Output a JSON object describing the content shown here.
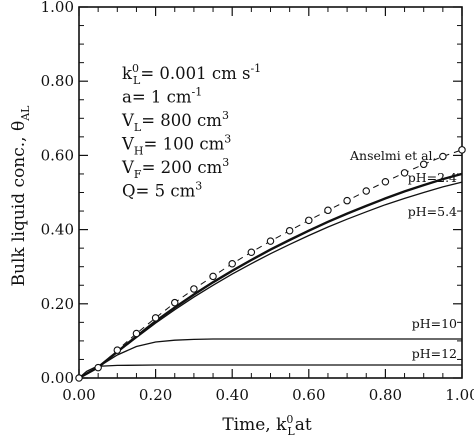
{
  "chart_data": {
    "type": "line",
    "xlabel": "Time, k⁰ₗat",
    "xlabel_parts": {
      "main": "Time, k",
      "sup": "0",
      "sub": "L",
      "tail": "at"
    },
    "ylabel": "Bulk liquid conc., θAL",
    "ylabel_parts": {
      "main": "Bulk liquid conc., θ",
      "sub": "AL"
    },
    "xlim": [
      0.0,
      1.0
    ],
    "ylim": [
      0.0,
      1.0
    ],
    "xticks": [
      "0.00",
      "0.20",
      "0.40",
      "0.60",
      "0.80",
      "1.00"
    ],
    "yticks": [
      "0.00",
      "0.20",
      "0.40",
      "0.60",
      "0.80",
      "1.00"
    ],
    "grid": false,
    "parameters": [
      {
        "main": "k",
        "sup": "0",
        "sub": "L",
        "rest": "= 0.001 cm s",
        "sup2": "-1"
      },
      {
        "main": "a= 1 cm",
        "sup2": "-1"
      },
      {
        "main": "V",
        "sub": "L",
        "rest": "= 800 cm",
        "sup2": "3"
      },
      {
        "main": "V",
        "sub": "H",
        "rest": "= 100 cm",
        "sup2": "3"
      },
      {
        "main": "V",
        "sub": "F",
        "rest": "= 200 cm",
        "sup2": "3"
      },
      {
        "main": "Q= 5 cm",
        "sup2": "3"
      }
    ],
    "series": [
      {
        "name": "Anselmi et al.",
        "style": "dashed-circles",
        "x": [
          0.0,
          0.05,
          0.1,
          0.15,
          0.2,
          0.25,
          0.3,
          0.35,
          0.4,
          0.45,
          0.5,
          0.55,
          0.6,
          0.65,
          0.7,
          0.75,
          0.8,
          0.85,
          0.9,
          0.95,
          1.0
        ],
        "y": [
          0.0,
          0.028,
          0.075,
          0.12,
          0.162,
          0.203,
          0.24,
          0.274,
          0.308,
          0.339,
          0.369,
          0.397,
          0.425,
          0.452,
          0.478,
          0.504,
          0.529,
          0.553,
          0.576,
          0.597,
          0.615
        ]
      },
      {
        "name": "pH=2.4",
        "style": "bold",
        "x": [
          0.0,
          0.05,
          0.1,
          0.15,
          0.2,
          0.25,
          0.3,
          0.35,
          0.4,
          0.45,
          0.5,
          0.55,
          0.6,
          0.65,
          0.7,
          0.75,
          0.8,
          0.85,
          0.9,
          0.95,
          1.0
        ],
        "y": [
          0.0,
          0.029,
          0.071,
          0.112,
          0.153,
          0.19,
          0.225,
          0.258,
          0.289,
          0.318,
          0.346,
          0.372,
          0.397,
          0.421,
          0.443,
          0.464,
          0.484,
          0.503,
          0.52,
          0.536,
          0.55
        ]
      },
      {
        "name": "pH=5.4",
        "style": "thin",
        "x": [
          0.0,
          0.05,
          0.1,
          0.15,
          0.2,
          0.25,
          0.3,
          0.35,
          0.4,
          0.45,
          0.5,
          0.55,
          0.6,
          0.65,
          0.7,
          0.75,
          0.8,
          0.85,
          0.9,
          0.95,
          1.0
        ],
        "y": [
          0.0,
          0.028,
          0.069,
          0.109,
          0.148,
          0.184,
          0.218,
          0.25,
          0.28,
          0.308,
          0.335,
          0.36,
          0.384,
          0.407,
          0.428,
          0.448,
          0.467,
          0.484,
          0.5,
          0.515,
          0.528
        ]
      },
      {
        "name": "pH=10",
        "style": "thin",
        "x": [
          0.0,
          0.05,
          0.1,
          0.15,
          0.2,
          0.25,
          0.3,
          0.35,
          0.4,
          0.5,
          0.6,
          0.7,
          0.8,
          0.9,
          1.0
        ],
        "y": [
          0.0,
          0.03,
          0.062,
          0.085,
          0.097,
          0.102,
          0.104,
          0.105,
          0.105,
          0.105,
          0.105,
          0.105,
          0.105,
          0.105,
          0.105
        ]
      },
      {
        "name": "pH=12",
        "style": "thin",
        "x": [
          0.0,
          0.02,
          0.04,
          0.06,
          0.1,
          0.2,
          0.4,
          0.6,
          0.8,
          1.0
        ],
        "y": [
          0.0,
          0.018,
          0.028,
          0.032,
          0.034,
          0.035,
          0.035,
          0.035,
          0.035,
          0.035
        ]
      }
    ]
  }
}
